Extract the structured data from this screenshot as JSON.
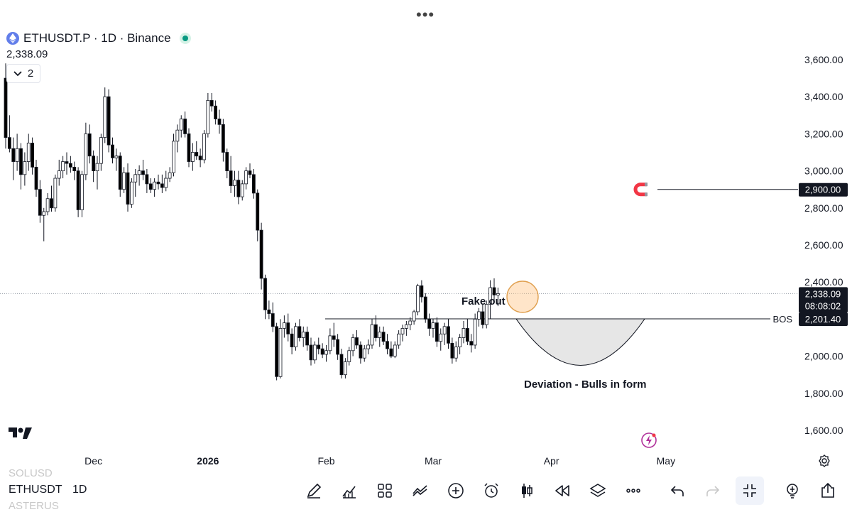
{
  "header": {
    "symbol_line": "ETHUSDT.P · 1D · Binance",
    "last_price": "2,338.09",
    "collapse_count": "2",
    "menu_dots": "•••"
  },
  "chart_data": {
    "type": "candlestick",
    "symbol": "ETHUSDT.P",
    "timeframe": "1D",
    "exchange": "Binance",
    "y_ticks": [
      "3,600.00",
      "3,400.00",
      "3,200.00",
      "3,000.00",
      "2,800.00",
      "2,600.00",
      "2,400.00",
      "2,200.00",
      "2,000.00",
      "1,800.00",
      "1,600.00"
    ],
    "y_tick_values": [
      3600,
      3400,
      3200,
      3000,
      2800,
      2600,
      2400,
      2200,
      2000,
      1800,
      1600
    ],
    "ylim": [
      1560,
      3620
    ],
    "x_labels": [
      {
        "text": "Dec",
        "index": 23
      },
      {
        "text": "2026",
        "index": 53
      },
      {
        "text": "Feb",
        "index": 84
      },
      {
        "text": "Mar",
        "index": 112
      },
      {
        "text": "Apr",
        "index": 143
      },
      {
        "text": "May",
        "index": 173
      }
    ],
    "candles": [
      [
        3500,
        3580,
        3120,
        3180
      ],
      [
        3180,
        3300,
        3100,
        3120
      ],
      [
        3120,
        3180,
        2950,
        3050
      ],
      [
        3050,
        3200,
        3000,
        3120
      ],
      [
        3120,
        3150,
        2900,
        2980
      ],
      [
        2980,
        3100,
        2920,
        3050
      ],
      [
        3050,
        3200,
        3000,
        3150
      ],
      [
        3150,
        3180,
        2980,
        3020
      ],
      [
        3020,
        3060,
        2860,
        2900
      ],
      [
        2900,
        2950,
        2720,
        2760
      ],
      [
        2760,
        2800,
        2620,
        2780
      ],
      [
        2780,
        2880,
        2760,
        2850
      ],
      [
        2850,
        2920,
        2780,
        2800
      ],
      [
        2800,
        2980,
        2780,
        2960
      ],
      [
        2960,
        3060,
        2920,
        3000
      ],
      [
        3000,
        3080,
        2960,
        3050
      ],
      [
        3050,
        3100,
        2980,
        3040
      ],
      [
        3040,
        3080,
        2990,
        3020
      ],
      [
        3020,
        3050,
        2950,
        3000
      ],
      [
        3000,
        3020,
        2750,
        2790
      ],
      [
        2790,
        3000,
        2750,
        2980
      ],
      [
        2980,
        3260,
        2950,
        3200
      ],
      [
        3200,
        3250,
        3040,
        3080
      ],
      [
        3080,
        3110,
        2940,
        3000
      ],
      [
        3000,
        3080,
        2900,
        3040
      ],
      [
        3040,
        3200,
        3000,
        3180
      ],
      [
        3180,
        3450,
        3150,
        3400
      ],
      [
        3400,
        3440,
        3100,
        3140
      ],
      [
        3140,
        3180,
        3040,
        3070
      ],
      [
        3070,
        3120,
        3000,
        3080
      ],
      [
        3080,
        3100,
        2860,
        2900
      ],
      [
        2900,
        3020,
        2880,
        2990
      ],
      [
        2990,
        3040,
        2780,
        2820
      ],
      [
        2820,
        2960,
        2800,
        2940
      ],
      [
        2940,
        3010,
        2860,
        2980
      ],
      [
        2980,
        3030,
        2920,
        3000
      ],
      [
        3000,
        3060,
        2950,
        2980
      ],
      [
        2980,
        3010,
        2880,
        2930
      ],
      [
        2930,
        2960,
        2880,
        2900
      ],
      [
        2900,
        2960,
        2860,
        2940
      ],
      [
        2940,
        2980,
        2900,
        2930
      ],
      [
        2930,
        2980,
        2880,
        2910
      ],
      [
        2910,
        3000,
        2890,
        2960
      ],
      [
        2960,
        3020,
        2940,
        2990
      ],
      [
        2990,
        3200,
        2970,
        3160
      ],
      [
        3160,
        3250,
        3100,
        3220
      ],
      [
        3220,
        3300,
        3180,
        3280
      ],
      [
        3280,
        3320,
        3180,
        3200
      ],
      [
        3200,
        3230,
        3020,
        3050
      ],
      [
        3050,
        3150,
        3000,
        3100
      ],
      [
        3100,
        3160,
        3060,
        3080
      ],
      [
        3080,
        3120,
        3020,
        3060
      ],
      [
        3060,
        3220,
        3040,
        3200
      ],
      [
        3200,
        3420,
        3180,
        3380
      ],
      [
        3380,
        3420,
        3320,
        3350
      ],
      [
        3350,
        3380,
        3250,
        3280
      ],
      [
        3280,
        3330,
        3200,
        3250
      ],
      [
        3250,
        3280,
        3050,
        3100
      ],
      [
        3100,
        3120,
        2960,
        3000
      ],
      [
        3000,
        3080,
        2880,
        2920
      ],
      [
        2920,
        3000,
        2860,
        2950
      ],
      [
        2950,
        3000,
        2820,
        2860
      ],
      [
        2860,
        2950,
        2840,
        2930
      ],
      [
        2930,
        3020,
        2900,
        3000
      ],
      [
        3000,
        3040,
        2960,
        2980
      ],
      [
        2980,
        3010,
        2850,
        2880
      ],
      [
        2880,
        2900,
        2620,
        2680
      ],
      [
        2680,
        2720,
        2360,
        2420
      ],
      [
        2420,
        2440,
        2200,
        2250
      ],
      [
        2250,
        2300,
        2200,
        2230
      ],
      [
        2230,
        2290,
        2130,
        2160
      ],
      [
        2160,
        2180,
        1870,
        1890
      ],
      [
        1890,
        2200,
        1880,
        2150
      ],
      [
        2150,
        2220,
        2100,
        2180
      ],
      [
        2180,
        2230,
        2080,
        2120
      ],
      [
        2120,
        2150,
        2010,
        2050
      ],
      [
        2050,
        2180,
        2030,
        2160
      ],
      [
        2160,
        2200,
        2080,
        2100
      ],
      [
        2100,
        2160,
        2050,
        2130
      ],
      [
        2130,
        2160,
        2030,
        2060
      ],
      [
        2060,
        2100,
        1950,
        1980
      ],
      [
        1980,
        2080,
        1960,
        2060
      ],
      [
        2060,
        2100,
        2010,
        2040
      ],
      [
        2040,
        2070,
        1990,
        2010
      ],
      [
        2010,
        2060,
        1970,
        2030
      ],
      [
        2030,
        2150,
        2010,
        2110
      ],
      [
        2110,
        2180,
        2050,
        2090
      ],
      [
        2090,
        2120,
        1980,
        2010
      ],
      [
        2010,
        2040,
        1880,
        1900
      ],
      [
        1900,
        1990,
        1880,
        1970
      ],
      [
        1970,
        2050,
        1950,
        2030
      ],
      [
        2030,
        2120,
        2000,
        2100
      ],
      [
        2100,
        2140,
        2040,
        2060
      ],
      [
        2060,
        2080,
        1960,
        1990
      ],
      [
        1990,
        2060,
        1970,
        2040
      ],
      [
        2040,
        2090,
        2010,
        2060
      ],
      [
        2060,
        2200,
        2040,
        2170
      ],
      [
        2170,
        2220,
        2080,
        2100
      ],
      [
        2100,
        2160,
        2050,
        2130
      ],
      [
        2130,
        2160,
        2060,
        2080
      ],
      [
        2080,
        2120,
        2010,
        2040
      ],
      [
        2040,
        2080,
        1990,
        2000
      ],
      [
        2000,
        2080,
        1990,
        2060
      ],
      [
        2060,
        2140,
        2040,
        2120
      ],
      [
        2120,
        2170,
        2080,
        2150
      ],
      [
        2150,
        2190,
        2110,
        2170
      ],
      [
        2170,
        2210,
        2140,
        2190
      ],
      [
        2190,
        2250,
        2170,
        2240
      ],
      [
        2240,
        2390,
        2220,
        2380
      ],
      [
        2380,
        2410,
        2290,
        2320
      ],
      [
        2320,
        2340,
        2180,
        2200
      ],
      [
        2200,
        2230,
        2110,
        2150
      ],
      [
        2150,
        2200,
        2100,
        2180
      ],
      [
        2180,
        2210,
        2050,
        2080
      ],
      [
        2080,
        2150,
        2030,
        2120
      ],
      [
        2120,
        2180,
        2060,
        2160
      ],
      [
        2160,
        2200,
        2040,
        2070
      ],
      [
        2070,
        2100,
        1960,
        1990
      ],
      [
        1990,
        2080,
        1970,
        2050
      ],
      [
        2050,
        2120,
        2010,
        2100
      ],
      [
        2100,
        2190,
        2070,
        2150
      ],
      [
        2150,
        2200,
        2060,
        2080
      ],
      [
        2080,
        2120,
        2020,
        2060
      ],
      [
        2060,
        2230,
        2040,
        2200
      ],
      [
        2200,
        2260,
        2160,
        2240
      ],
      [
        2240,
        2280,
        2150,
        2170
      ],
      [
        2170,
        2300,
        2150,
        2280
      ],
      [
        2280,
        2410,
        2200,
        2370
      ],
      [
        2370,
        2420,
        2300,
        2330
      ],
      [
        2330,
        2370,
        2270,
        2338.09
      ]
    ],
    "bull_color": "#ffffff",
    "bear_color": "#000000",
    "horizontal_lines": [
      {
        "price": 2900,
        "label": "2,900.00",
        "style": "solid",
        "icon": "magnet"
      },
      {
        "price": 2201.4,
        "label": "2,201.40",
        "style": "solid",
        "text": "BOS"
      },
      {
        "price": 2338.09,
        "label": "2,338.09",
        "style": "dotted",
        "countdown": "08:08:02"
      }
    ],
    "annotations": [
      {
        "text": "Fake out",
        "type": "label"
      },
      {
        "text": "Deviation - Bulls in form",
        "type": "label"
      }
    ],
    "grid": false
  },
  "annotations": {
    "fake_out": "Fake out",
    "deviation": "Deviation - Bulls in form",
    "bos": "BOS"
  },
  "bottom_bar": {
    "ticker_above": "SOLUSD",
    "ticker": "ETHUSDT",
    "ticker_below": "ASTERUS",
    "timeframe": "1D"
  },
  "toolbar_icons": [
    "pencil-icon",
    "indicators-icon",
    "layout-grid-icon",
    "compare-icon",
    "add-icon",
    "alarm-icon",
    "candles-icon",
    "replay-icon",
    "layers-icon",
    "more-icon",
    "undo-icon",
    "redo-icon",
    "fullscreen-exit-icon",
    "idea-icon",
    "share-icon"
  ]
}
